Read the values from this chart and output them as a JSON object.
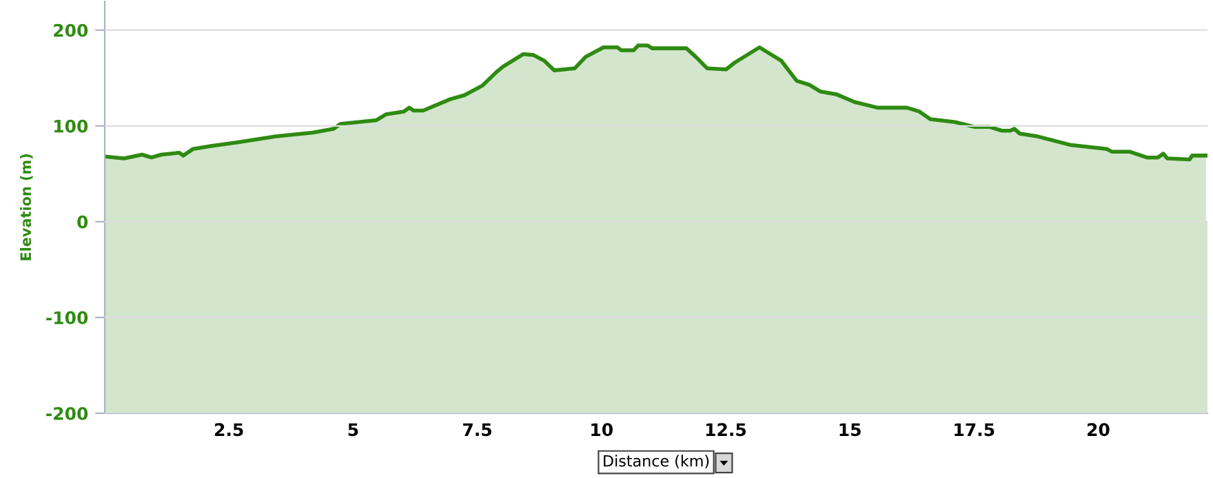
{
  "chart_data": {
    "type": "area",
    "xlabel": "Distance (km)",
    "ylabel": "Elevation (m)",
    "xlim": [
      0,
      22.2
    ],
    "ylim": [
      -200,
      230
    ],
    "xticks": [
      2.5,
      5,
      7.5,
      10,
      12.5,
      15,
      17.5,
      20
    ],
    "yticks": [
      -200,
      -100,
      0,
      100,
      200
    ],
    "grid": "y",
    "bands": [
      {
        "axis": "y",
        "from": -200,
        "to": 0,
        "color": "#2f8a12"
      }
    ],
    "series": [
      {
        "color": "#2f8a12",
        "x": [
          0,
          0.39,
          0.75,
          0.94,
          1.14,
          1.5,
          1.58,
          1.78,
          2.14,
          2.69,
          3.44,
          4.19,
          4.61,
          4.74,
          5.47,
          5.66,
          6.02,
          6.13,
          6.22,
          6.41,
          6.96,
          7.24,
          7.6,
          7.88,
          8.02,
          8.43,
          8.63,
          8.85,
          9.05,
          9.46,
          9.68,
          10.04,
          10.32,
          10.4,
          10.65,
          10.74,
          10.93,
          11.02,
          11.71,
          11.9,
          12.13,
          12.51,
          12.68,
          13.18,
          13.62,
          13.93,
          14.18,
          14.4,
          14.73,
          15.09,
          15.56,
          16.15,
          16.4,
          16.62,
          17.12,
          17.5,
          17.81,
          18.06,
          18.23,
          18.31,
          18.42,
          18.78,
          19.45,
          20.17,
          20.28,
          20.64,
          20.98,
          21.2,
          21.31,
          21.39,
          21.84,
          21.89,
          22.17
        ],
        "values": [
          68,
          66,
          70,
          67,
          70,
          72,
          69,
          76,
          79,
          83,
          89,
          93,
          97,
          102,
          106,
          112,
          115,
          119,
          116,
          116,
          128,
          132,
          142,
          156,
          162,
          175,
          174,
          168,
          158,
          160,
          172,
          182,
          182,
          179,
          179,
          184,
          184,
          181,
          181,
          172,
          160,
          159,
          166,
          182,
          168,
          147,
          143,
          136,
          133,
          125,
          119,
          119,
          115,
          107,
          104,
          99,
          99,
          95,
          95,
          97,
          92,
          89,
          80,
          76,
          73,
          73,
          67,
          67,
          71,
          66,
          65,
          69,
          69
        ]
      }
    ]
  }
}
